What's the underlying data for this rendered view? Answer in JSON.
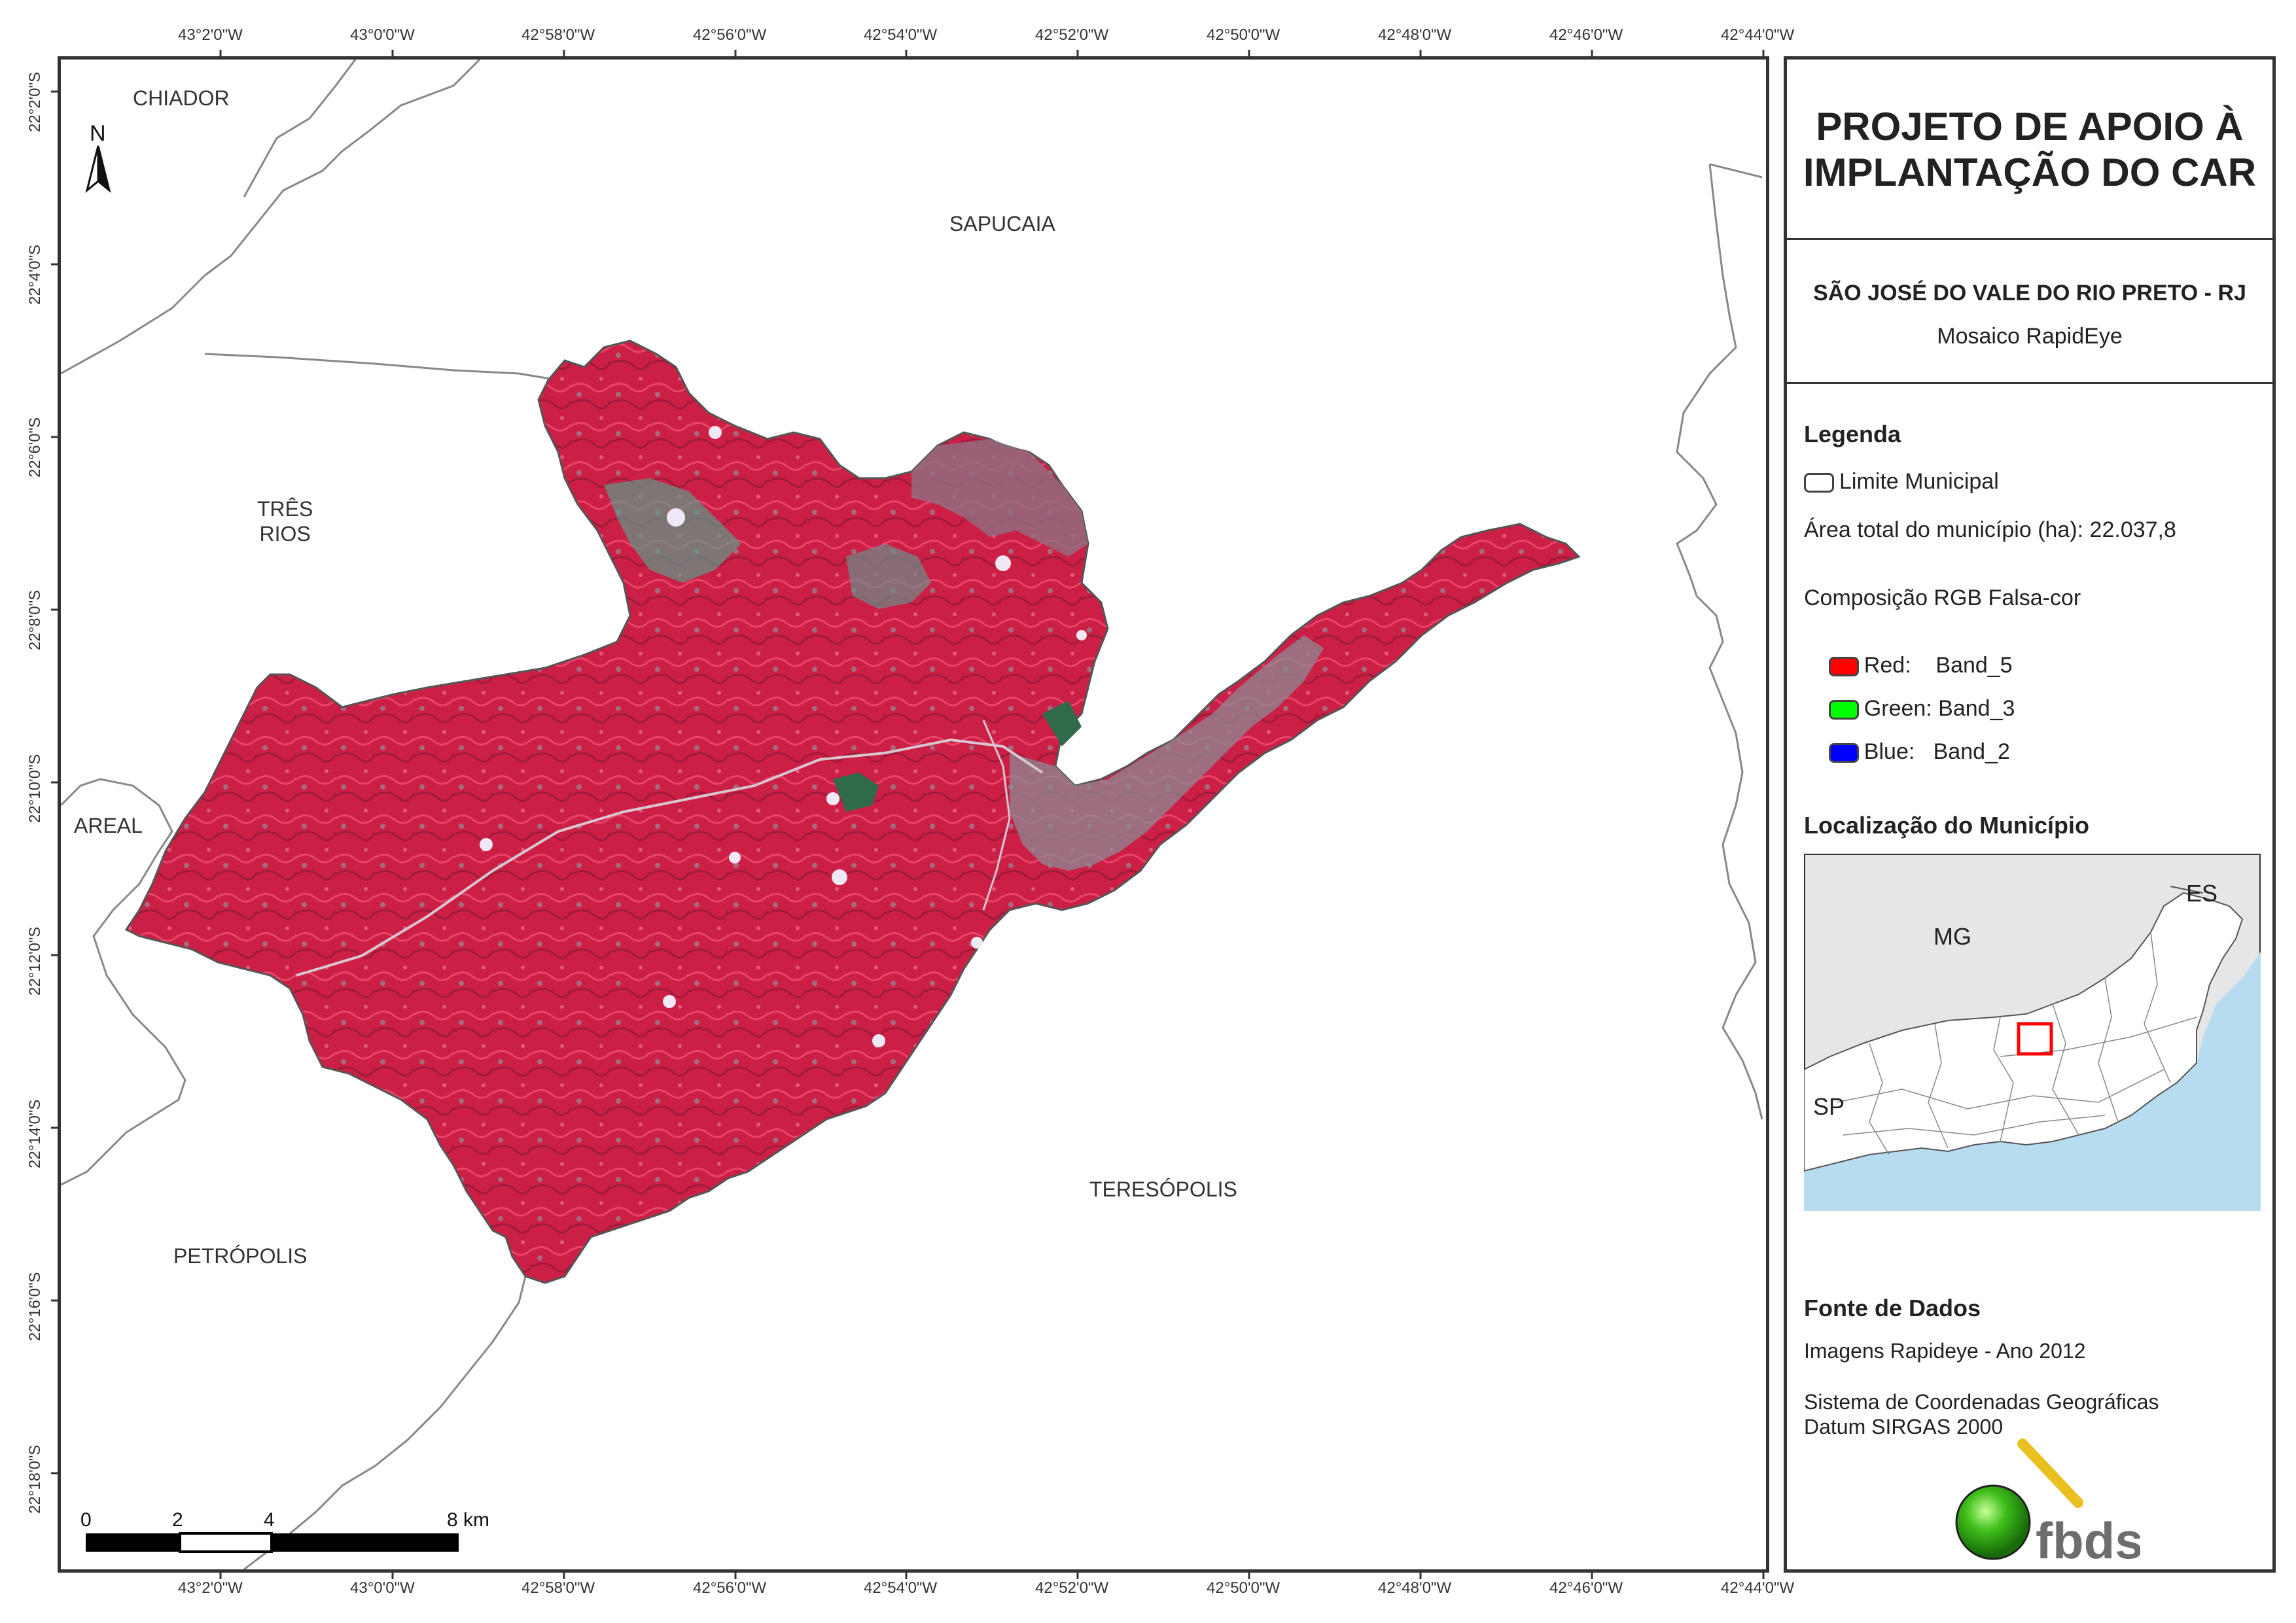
{
  "coords": {
    "top": [
      "43°2'0\"W",
      "43°0'0\"W",
      "42°58'0\"W",
      "42°56'0\"W",
      "42°54'0\"W",
      "42°52'0\"W",
      "42°50'0\"W",
      "42°48'0\"W",
      "42°46'0\"W",
      "42°44'0\"W"
    ],
    "bottom": [
      "43°2'0\"W",
      "43°0'0\"W",
      "42°58'0\"W",
      "42°56'0\"W",
      "42°54'0\"W",
      "42°52'0\"W",
      "42°50'0\"W",
      "42°48'0\"W",
      "42°46'0\"W",
      "42°44'0\"W"
    ],
    "left": [
      "22°2'0\"S",
      "22°4'0\"S",
      "22°6'0\"S",
      "22°8'0\"S",
      "22°10'0\"S",
      "22°12'0\"S",
      "22°14'0\"S",
      "22°16'0\"S",
      "22°18'0\"S"
    ]
  },
  "places": {
    "chiador": "CHIADOR",
    "sapucaia": "SAPUCAIA",
    "tres_rios": "TRÊS\nRIOS",
    "areal": "AREAL",
    "teresopolis": "TERESÓPOLIS",
    "petropolis": "PETRÓPOLIS"
  },
  "north": "N",
  "scale": {
    "labels": [
      "0",
      "2",
      "4",
      "8 km"
    ]
  },
  "panel": {
    "title_line1": "PROJETO DE APOIO À",
    "title_line2": "IMPLANTAÇÃO DO CAR",
    "municipio": "SÃO JOSÉ DO VALE DO RIO PRETO - RJ",
    "mosaico": "Mosaico RapidEye",
    "legenda": "Legenda",
    "limite": "Limite Municipal",
    "area": "Área total do município (ha): 22.037,8",
    "composicao": "Composição RGB Falsa-cor",
    "red_label": "Red:    Band_5",
    "green_label": "Green: Band_3",
    "blue_label": "Blue:   Band_2",
    "red_color": "#ff0000",
    "green_color": "#00ff00",
    "blue_color": "#0000ff",
    "localizacao": "Localização do Município",
    "inset": {
      "mg": "MG",
      "es": "ES",
      "sp": "SP"
    },
    "fonte": "Fonte de Dados",
    "imagens": "Imagens Rapideye - Ano 2012",
    "sistema": "Sistema de Coordenadas Geográficas",
    "datum": "Datum SIRGAS 2000",
    "logo_text": "fbds"
  }
}
